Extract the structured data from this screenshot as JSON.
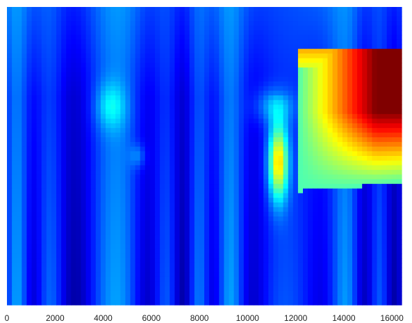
{
  "chart_data": {
    "type": "heatmap",
    "title": "",
    "xlabel": "",
    "ylabel": "",
    "xlim": [
      0,
      16400
    ],
    "x_ticks": [
      "0",
      "2000",
      "4000",
      "6000",
      "8000",
      "10000",
      "12000",
      "14000",
      "16000"
    ],
    "colormap": "jet",
    "grid": false,
    "description_of_features": [
      {
        "x_range": [
          10600,
          11400
        ],
        "peak_level": 0.62
      },
      {
        "x_range": [
          12000,
          16400
        ],
        "peak_level": 0.95
      }
    ]
  }
}
